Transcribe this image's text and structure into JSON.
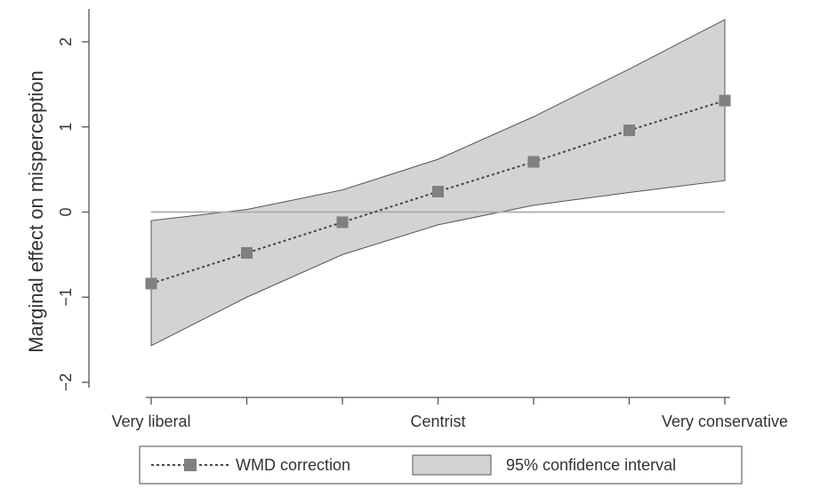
{
  "chart_data": {
    "type": "line",
    "title": "",
    "xlabel": "",
    "ylabel": "Marginal effect on misperception",
    "x_categories": [
      {
        "position": 1,
        "label": "Very liberal"
      },
      {
        "position": 4,
        "label": "Centrist"
      },
      {
        "position": 7,
        "label": "Very conservative"
      }
    ],
    "xlim": [
      1,
      7
    ],
    "ylim": [
      -2,
      2
    ],
    "yticks": [
      -2,
      -1,
      0,
      1,
      2
    ],
    "yticks_labels": [
      "−2",
      "−1",
      "0",
      "1",
      "2"
    ],
    "reference_line": 0,
    "series": [
      {
        "name": "WMD correction",
        "style": "dotted line with square markers",
        "color": "#808080",
        "x": [
          1,
          2,
          3,
          4,
          5,
          6,
          7
        ],
        "y": [
          -0.84,
          -0.48,
          -0.12,
          0.24,
          0.59,
          0.96,
          1.31
        ]
      }
    ],
    "confidence_band": {
      "name": "95% confidence interval",
      "color": "#d3d3d3",
      "x": [
        1,
        2,
        3,
        4,
        5,
        6,
        7
      ],
      "lower": [
        -1.57,
        -1.0,
        -0.5,
        -0.15,
        0.08,
        0.23,
        0.37
      ],
      "upper": [
        -0.1,
        0.03,
        0.26,
        0.62,
        1.12,
        1.68,
        2.26
      ]
    },
    "legend": {
      "placement": "bottom",
      "entries": [
        "WMD correction",
        "95% confidence interval"
      ]
    },
    "grid": false
  }
}
